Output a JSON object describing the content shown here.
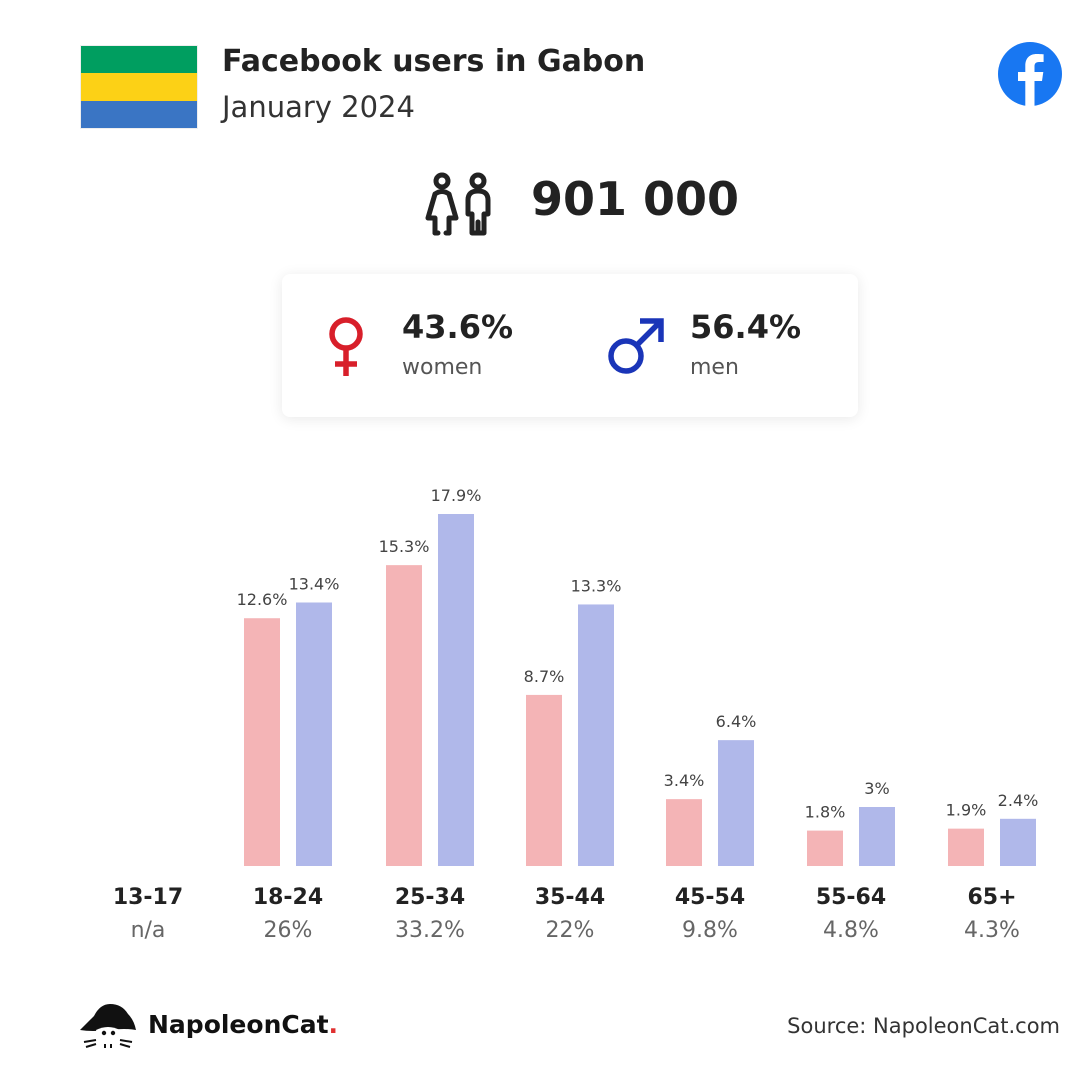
{
  "header": {
    "title": "Facebook users in Gabon",
    "subtitle": "January 2024",
    "flag_colors": [
      "#009e60",
      "#fcd116",
      "#3a75c4"
    ],
    "facebook_color": "#1877f2"
  },
  "summary": {
    "total_users": "901 000",
    "women": {
      "value": "43.6%",
      "label": "women",
      "color": "#d81f2a"
    },
    "men": {
      "value": "56.4%",
      "label": "men",
      "color": "#1a35b8"
    }
  },
  "chart_data": {
    "type": "bar",
    "categories": [
      "13-17",
      "18-24",
      "25-34",
      "35-44",
      "45-54",
      "55-64",
      "65+"
    ],
    "group_totals": [
      "n/a",
      "26%",
      "33.2%",
      "22%",
      "9.8%",
      "4.8%",
      "4.3%"
    ],
    "series": [
      {
        "name": "women",
        "values": [
          null,
          12.6,
          15.3,
          8.7,
          3.4,
          1.8,
          1.9
        ],
        "labels": [
          "",
          "12.6%",
          "15.3%",
          "8.7%",
          "3.4%",
          "1.8%",
          "1.9%"
        ],
        "color": "#f4b4b6"
      },
      {
        "name": "men",
        "values": [
          null,
          13.4,
          17.9,
          13.3,
          6.4,
          3,
          2.4
        ],
        "labels": [
          "",
          "13.4%",
          "17.9%",
          "13.3%",
          "6.4%",
          "3%",
          "2.4%"
        ],
        "color": "#b0b8ea"
      }
    ],
    "ylim": [
      0,
      17.9
    ],
    "grid": false
  },
  "footer": {
    "brand_name": "NapoleonCat",
    "brand_dot": ".",
    "source": "Source: NapoleonCat.com"
  }
}
